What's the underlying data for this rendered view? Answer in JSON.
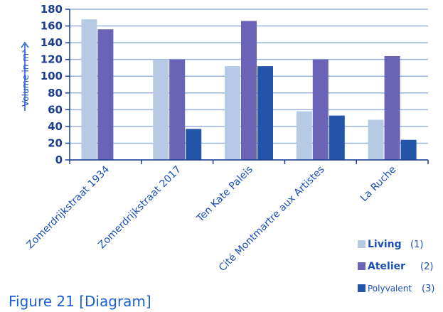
{
  "caption": "Figure 21 [Diagram]",
  "chart_data": {
    "type": "bar",
    "ylabel": "Volume in m³",
    "ylim": [
      0,
      180
    ],
    "ytick_step": 20,
    "categories": [
      "Zomerdrijkstraat 1934",
      "Zomerdrijkstraat 2017",
      "Ten Kate Paleis",
      "Cité Montmartre aux Artistes",
      "La Ruche"
    ],
    "series": [
      {
        "name": "Living",
        "note": "(1)",
        "color": "#b7cae5",
        "values": [
          168,
          120,
          112,
          58,
          48
        ]
      },
      {
        "name": "Atelier",
        "note": "(2)",
        "color": "#6a63b8",
        "values": [
          156,
          120,
          166,
          120,
          124
        ]
      },
      {
        "name": "Polyvalent",
        "note": "(3)",
        "color": "#2356aa",
        "values": [
          0,
          37,
          112,
          53,
          24
        ]
      }
    ],
    "legend_position": "bottom-right",
    "grid": true
  }
}
